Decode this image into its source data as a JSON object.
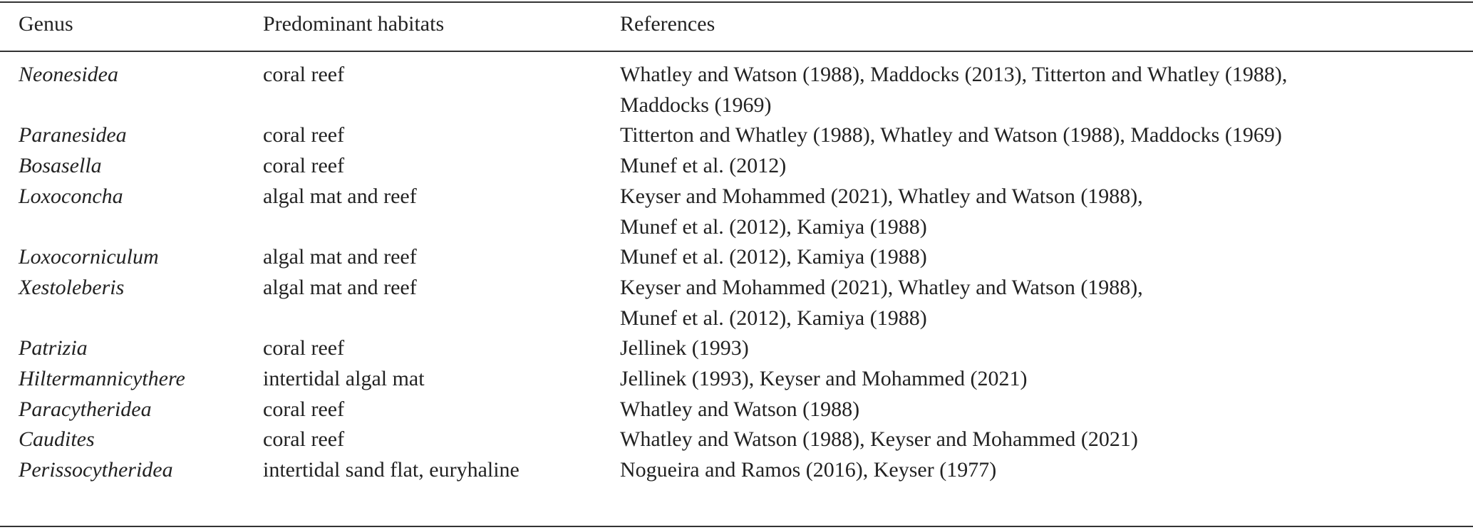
{
  "table": {
    "header": [
      "Genus",
      "Predominant habitats",
      "References"
    ],
    "rows": [
      {
        "genus": "Neonesidea",
        "habitat": "coral reef",
        "references": [
          "Whatley and Watson (1988), Maddocks (2013), Titterton and Whatley (1988),",
          "Maddocks (1969)"
        ]
      },
      {
        "genus": "Paranesidea",
        "habitat": "coral reef",
        "references": [
          "Titterton and Whatley (1988), Whatley and Watson (1988), Maddocks (1969)"
        ]
      },
      {
        "genus": "Bosasella",
        "habitat": "coral reef",
        "references": [
          "Munef et al. (2012)"
        ]
      },
      {
        "genus": "Loxoconcha",
        "habitat": "algal mat and reef",
        "references": [
          "Keyser and Mohammed (2021), Whatley and Watson (1988),",
          "Munef et al. (2012), Kamiya (1988)"
        ]
      },
      {
        "genus": "Loxocorniculum",
        "habitat": "algal mat and reef",
        "references": [
          "Munef et al. (2012), Kamiya (1988)"
        ]
      },
      {
        "genus": "Xestoleberis",
        "habitat": "algal mat and reef",
        "references": [
          "Keyser and Mohammed (2021), Whatley and Watson (1988),",
          "Munef et al. (2012), Kamiya (1988)"
        ]
      },
      {
        "genus": "Patrizia",
        "habitat": "coral reef",
        "references": [
          "Jellinek (1993)"
        ]
      },
      {
        "genus": "Hiltermannicythere",
        "habitat": "intertidal algal mat",
        "references": [
          "Jellinek (1993), Keyser and Mohammed (2021)"
        ]
      },
      {
        "genus": "Paracytheridea",
        "habitat": "coral reef",
        "references": [
          "Whatley and Watson (1988)"
        ]
      },
      {
        "genus": "Caudites",
        "habitat": "coral reef",
        "references": [
          "Whatley and Watson (1988), Keyser and Mohammed (2021)"
        ]
      },
      {
        "genus": "Perissocytheridea",
        "habitat": "intertidal sand flat, euryhaline",
        "references": [
          "Nogueira and Ramos (2016), Keyser (1977)"
        ]
      }
    ]
  }
}
